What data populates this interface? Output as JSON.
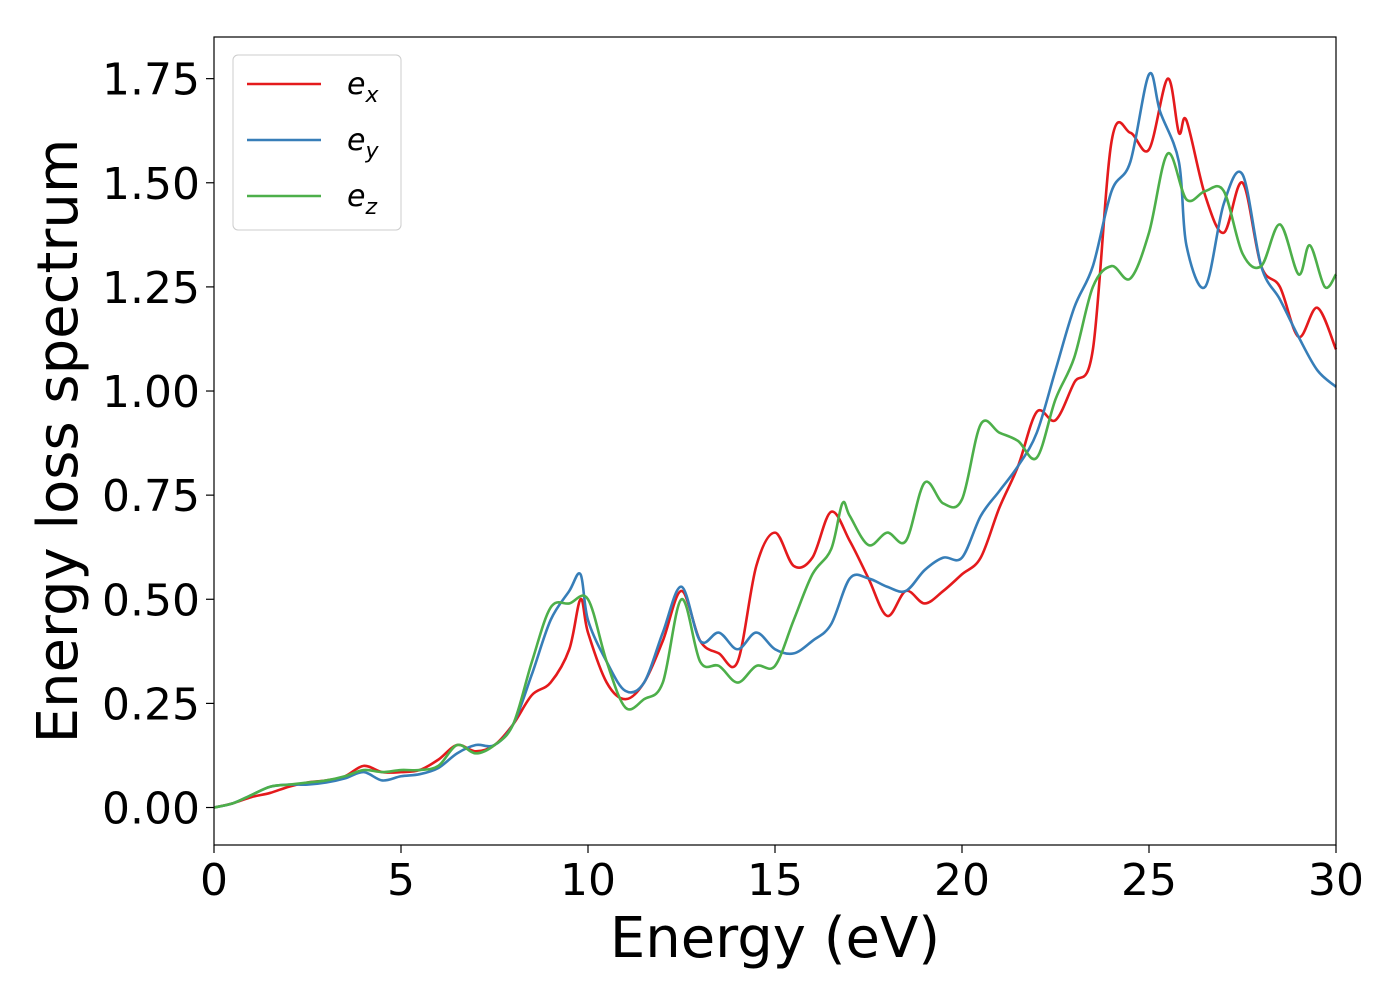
{
  "chart_data": {
    "type": "line",
    "title": "",
    "xlabel": "Energy (eV)",
    "ylabel": "Energy loss spectrum",
    "xlim": [
      0,
      30
    ],
    "ylim": [
      -0.09,
      1.85
    ],
    "xticks": [
      "0",
      "5",
      "10",
      "15",
      "20",
      "25",
      "30"
    ],
    "yticks": [
      "0.00",
      "0.25",
      "0.50",
      "0.75",
      "1.00",
      "1.25",
      "1.50",
      "1.75"
    ],
    "grid": false,
    "legend": "top-left",
    "series": [
      {
        "name": "e_x",
        "base": "e",
        "sub": "x",
        "color": "#e41a1c",
        "points": [
          [
            0,
            0
          ],
          [
            0.5,
            0.01
          ],
          [
            1,
            0.025
          ],
          [
            1.5,
            0.035
          ],
          [
            2,
            0.05
          ],
          [
            2.5,
            0.06
          ],
          [
            3,
            0.065
          ],
          [
            3.5,
            0.075
          ],
          [
            4,
            0.1
          ],
          [
            4.5,
            0.085
          ],
          [
            5,
            0.085
          ],
          [
            5.5,
            0.09
          ],
          [
            6,
            0.115
          ],
          [
            6.5,
            0.15
          ],
          [
            7,
            0.135
          ],
          [
            7.5,
            0.15
          ],
          [
            8,
            0.2
          ],
          [
            8.5,
            0.27
          ],
          [
            9,
            0.3
          ],
          [
            9.5,
            0.38
          ],
          [
            9.8,
            0.5
          ],
          [
            10,
            0.42
          ],
          [
            10.5,
            0.3
          ],
          [
            11,
            0.26
          ],
          [
            11.5,
            0.3
          ],
          [
            12,
            0.4
          ],
          [
            12.5,
            0.52
          ],
          [
            13,
            0.4
          ],
          [
            13.5,
            0.37
          ],
          [
            14,
            0.35
          ],
          [
            14.5,
            0.58
          ],
          [
            15,
            0.66
          ],
          [
            15.5,
            0.58
          ],
          [
            16,
            0.6
          ],
          [
            16.5,
            0.71
          ],
          [
            17,
            0.64
          ],
          [
            17.5,
            0.55
          ],
          [
            18,
            0.46
          ],
          [
            18.5,
            0.52
          ],
          [
            19,
            0.49
          ],
          [
            19.5,
            0.52
          ],
          [
            20,
            0.56
          ],
          [
            20.5,
            0.6
          ],
          [
            21,
            0.72
          ],
          [
            21.5,
            0.82
          ],
          [
            22,
            0.95
          ],
          [
            22.5,
            0.93
          ],
          [
            23,
            1.02
          ],
          [
            23.5,
            1.1
          ],
          [
            24,
            1.6
          ],
          [
            24.5,
            1.62
          ],
          [
            25,
            1.58
          ],
          [
            25.5,
            1.75
          ],
          [
            25.8,
            1.62
          ],
          [
            26,
            1.65
          ],
          [
            26.5,
            1.47
          ],
          [
            27,
            1.38
          ],
          [
            27.5,
            1.5
          ],
          [
            28,
            1.3
          ],
          [
            28.5,
            1.25
          ],
          [
            29,
            1.13
          ],
          [
            29.5,
            1.2
          ],
          [
            30,
            1.1
          ]
        ]
      },
      {
        "name": "e_y",
        "base": "e",
        "sub": "y",
        "color": "#377eb8",
        "points": [
          [
            0,
            0
          ],
          [
            0.5,
            0.01
          ],
          [
            1,
            0.03
          ],
          [
            1.5,
            0.05
          ],
          [
            2,
            0.055
          ],
          [
            2.5,
            0.055
          ],
          [
            3,
            0.06
          ],
          [
            3.5,
            0.07
          ],
          [
            4,
            0.085
          ],
          [
            4.5,
            0.065
          ],
          [
            5,
            0.075
          ],
          [
            5.5,
            0.08
          ],
          [
            6,
            0.095
          ],
          [
            6.5,
            0.13
          ],
          [
            7,
            0.15
          ],
          [
            7.5,
            0.15
          ],
          [
            8,
            0.2
          ],
          [
            8.5,
            0.32
          ],
          [
            9,
            0.45
          ],
          [
            9.5,
            0.52
          ],
          [
            9.8,
            0.56
          ],
          [
            10,
            0.45
          ],
          [
            10.5,
            0.35
          ],
          [
            11,
            0.28
          ],
          [
            11.5,
            0.3
          ],
          [
            12,
            0.42
          ],
          [
            12.5,
            0.53
          ],
          [
            13,
            0.4
          ],
          [
            13.5,
            0.42
          ],
          [
            14,
            0.38
          ],
          [
            14.5,
            0.42
          ],
          [
            15,
            0.38
          ],
          [
            15.5,
            0.37
          ],
          [
            16,
            0.4
          ],
          [
            16.5,
            0.44
          ],
          [
            17,
            0.55
          ],
          [
            17.5,
            0.55
          ],
          [
            18,
            0.53
          ],
          [
            18.5,
            0.52
          ],
          [
            19,
            0.57
          ],
          [
            19.5,
            0.6
          ],
          [
            20,
            0.6
          ],
          [
            20.5,
            0.7
          ],
          [
            21,
            0.76
          ],
          [
            21.5,
            0.82
          ],
          [
            22,
            0.9
          ],
          [
            22.5,
            1.05
          ],
          [
            23,
            1.2
          ],
          [
            23.5,
            1.3
          ],
          [
            24,
            1.48
          ],
          [
            24.5,
            1.55
          ],
          [
            25,
            1.76
          ],
          [
            25.3,
            1.67
          ],
          [
            25.8,
            1.55
          ],
          [
            26,
            1.35
          ],
          [
            26.5,
            1.25
          ],
          [
            27,
            1.45
          ],
          [
            27.5,
            1.52
          ],
          [
            28,
            1.3
          ],
          [
            28.5,
            1.22
          ],
          [
            29,
            1.13
          ],
          [
            29.5,
            1.05
          ],
          [
            30,
            1.01
          ]
        ]
      },
      {
        "name": "e_z",
        "base": "e",
        "sub": "z",
        "color": "#4daf4a",
        "points": [
          [
            0,
            0
          ],
          [
            0.5,
            0.01
          ],
          [
            1,
            0.03
          ],
          [
            1.5,
            0.05
          ],
          [
            2,
            0.055
          ],
          [
            2.5,
            0.06
          ],
          [
            3,
            0.065
          ],
          [
            3.5,
            0.075
          ],
          [
            4,
            0.09
          ],
          [
            4.5,
            0.085
          ],
          [
            5,
            0.09
          ],
          [
            5.5,
            0.09
          ],
          [
            6,
            0.1
          ],
          [
            6.5,
            0.15
          ],
          [
            7,
            0.13
          ],
          [
            7.5,
            0.15
          ],
          [
            8,
            0.2
          ],
          [
            8.5,
            0.35
          ],
          [
            9,
            0.48
          ],
          [
            9.5,
            0.49
          ],
          [
            10,
            0.5
          ],
          [
            10.5,
            0.35
          ],
          [
            11,
            0.24
          ],
          [
            11.5,
            0.26
          ],
          [
            12,
            0.3
          ],
          [
            12.5,
            0.5
          ],
          [
            13,
            0.35
          ],
          [
            13.5,
            0.34
          ],
          [
            14,
            0.3
          ],
          [
            14.5,
            0.34
          ],
          [
            15,
            0.34
          ],
          [
            15.5,
            0.45
          ],
          [
            16,
            0.56
          ],
          [
            16.5,
            0.62
          ],
          [
            16.8,
            0.73
          ],
          [
            17,
            0.7
          ],
          [
            17.5,
            0.63
          ],
          [
            18,
            0.66
          ],
          [
            18.5,
            0.64
          ],
          [
            19,
            0.78
          ],
          [
            19.5,
            0.73
          ],
          [
            20,
            0.74
          ],
          [
            20.5,
            0.92
          ],
          [
            21,
            0.9
          ],
          [
            21.5,
            0.88
          ],
          [
            22,
            0.84
          ],
          [
            22.5,
            0.98
          ],
          [
            23,
            1.08
          ],
          [
            23.5,
            1.25
          ],
          [
            24,
            1.3
          ],
          [
            24.5,
            1.27
          ],
          [
            25,
            1.38
          ],
          [
            25.5,
            1.57
          ],
          [
            26,
            1.46
          ],
          [
            26.5,
            1.48
          ],
          [
            27,
            1.48
          ],
          [
            27.5,
            1.33
          ],
          [
            28,
            1.3
          ],
          [
            28.5,
            1.4
          ],
          [
            29,
            1.28
          ],
          [
            29.3,
            1.35
          ],
          [
            29.7,
            1.25
          ],
          [
            30,
            1.28
          ]
        ]
      }
    ]
  }
}
